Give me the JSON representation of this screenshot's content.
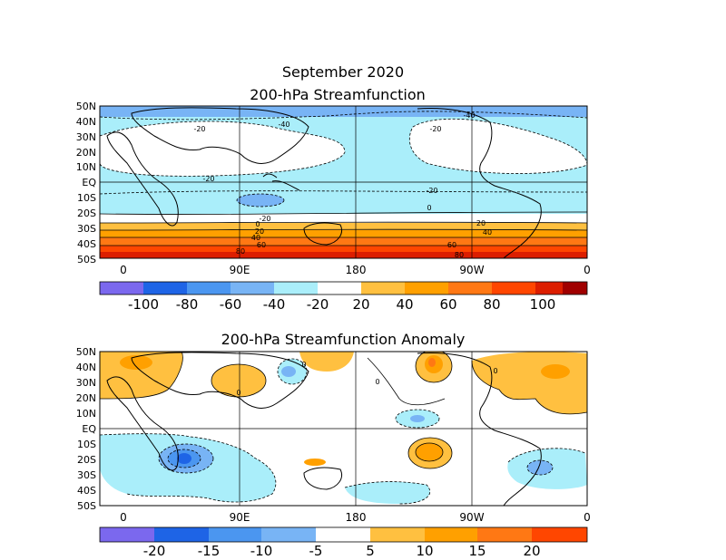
{
  "figure": {
    "title": "September 2020",
    "panels": [
      {
        "id": "sf",
        "title": "200-hPa Streamfunction",
        "lat_labels": [
          "50N",
          "40N",
          "30N",
          "20N",
          "10N",
          "EQ",
          "10S",
          "20S",
          "30S",
          "40S",
          "50S"
        ],
        "lon_labels": [
          "0",
          "90E",
          "180",
          "90W",
          "0"
        ],
        "colorbar": {
          "labels": [
            "-100",
            "-80",
            "-60",
            "-40",
            "-20",
            "20",
            "40",
            "60",
            "80",
            "100"
          ],
          "colors": [
            "#7b68ee",
            "#1e64e6",
            "#4b96f0",
            "#78b4f5",
            "#aaeefa",
            "#ffffff",
            "#ffc040",
            "#ffa000",
            "#ff7814",
            "#ff4600",
            "#dc1e00",
            "#a00000"
          ]
        },
        "contour_labels": [
          "-40",
          "-20",
          "-20",
          "-40",
          "-20",
          "-20",
          "0",
          "-20",
          "0",
          "20",
          "40",
          "60",
          "80",
          "20",
          "40",
          "60",
          "80"
        ]
      },
      {
        "id": "anom",
        "title": "200-hPa Streamfunction Anomaly",
        "lat_labels": [
          "50N",
          "40N",
          "30N",
          "20N",
          "10N",
          "EQ",
          "10S",
          "20S",
          "30S",
          "40S",
          "50S"
        ],
        "lon_labels": [
          "0",
          "90E",
          "180",
          "90W",
          "0"
        ],
        "colorbar": {
          "labels": [
            "-20",
            "-15",
            "-10",
            "-5",
            "5",
            "10",
            "15",
            "20"
          ],
          "colors": [
            "#7b68ee",
            "#1e64e6",
            "#4b96f0",
            "#78b4f5",
            "#aaeefa",
            "#ffffff",
            "#ffc040",
            "#ffa000",
            "#ff7814",
            "#ff4600"
          ]
        },
        "contour_labels": [
          "0",
          "0",
          "0",
          "0"
        ]
      }
    ]
  }
}
